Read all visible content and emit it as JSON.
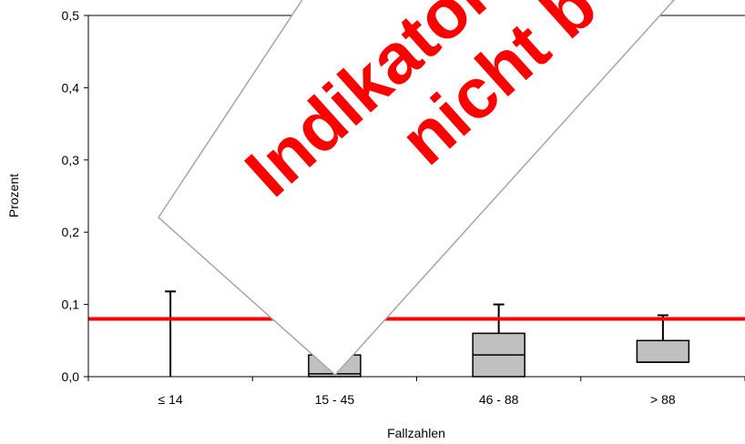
{
  "chart_data": {
    "type": "boxplot",
    "xlabel": "Fallzahlen",
    "ylabel": "Prozent",
    "ylim": [
      0,
      0.5
    ],
    "yticks": [
      "0,0",
      "0,1",
      "0,2",
      "0,3",
      "0,4",
      "0,5"
    ],
    "categories": [
      "≤ 14",
      "15 - 45",
      "46 - 88",
      "> 88"
    ],
    "boxes": [
      {
        "category": "≤ 14",
        "min": 0,
        "q1": 0,
        "median": 0,
        "q3": 0,
        "max": 0.118
      },
      {
        "category": "15 - 45",
        "min": 0,
        "q1": 0,
        "median": 0.004,
        "q3": 0.03,
        "max": 0.03
      },
      {
        "category": "46 - 88",
        "min": 0,
        "q1": 0,
        "median": 0.03,
        "q3": 0.06,
        "max": 0.1
      },
      {
        "category": "> 88",
        "min": 0,
        "q1": 0.02,
        "median": 0.02,
        "q3": 0.05,
        "max": 0.085
      }
    ],
    "reference_line": {
      "value": 0.08,
      "color": "#ff0000"
    },
    "box_fill": "#c0c0c0",
    "grid": false
  },
  "watermark": {
    "lines": [
      "Indikator",
      "nicht b"
    ],
    "color": "#ff0000"
  }
}
